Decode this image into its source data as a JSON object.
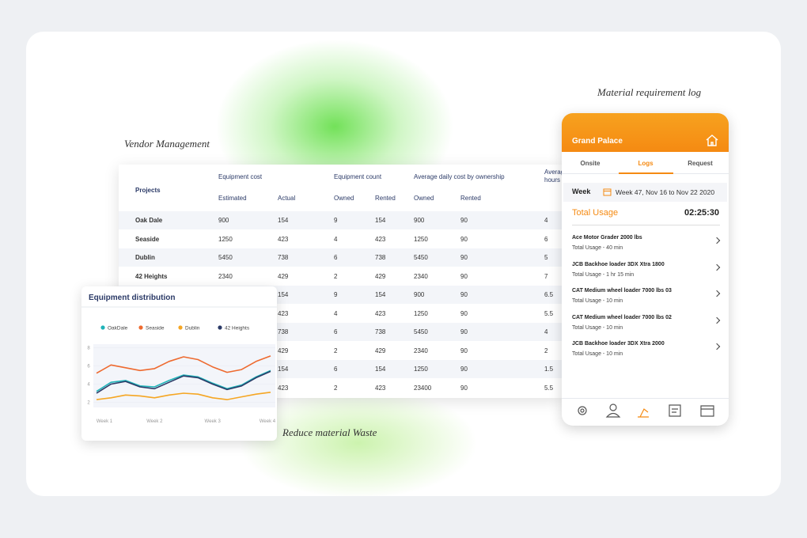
{
  "labels": {
    "vendor": "Vendor Management",
    "material_log": "Material requirement log",
    "reduce": "Reduce material Waste"
  },
  "table": {
    "groups": [
      "Projects",
      "Equipment cost",
      "Equipment count",
      "Average daily cost by ownership",
      "Average hours"
    ],
    "subheaders": [
      "Estimated",
      "Actual",
      "Owned",
      "Rented",
      "Owned",
      "Rented"
    ],
    "rows": [
      [
        "Oak Dale",
        900,
        154,
        9,
        154,
        900,
        90,
        4
      ],
      [
        "Seaside",
        1250,
        423,
        4,
        423,
        1250,
        90,
        6
      ],
      [
        "Dublin",
        5450,
        738,
        6,
        738,
        5450,
        90,
        5
      ],
      [
        "42 Heights",
        2340,
        429,
        2,
        429,
        2340,
        90,
        7
      ],
      [
        null,
        null,
        154,
        9,
        154,
        900,
        90,
        6.5
      ],
      [
        null,
        null,
        423,
        4,
        423,
        1250,
        90,
        5.5
      ],
      [
        null,
        null,
        738,
        6,
        738,
        5450,
        90,
        4
      ],
      [
        null,
        null,
        429,
        2,
        429,
        2340,
        90,
        2
      ],
      [
        null,
        null,
        154,
        6,
        154,
        1250,
        90,
        1.5
      ],
      [
        null,
        null,
        423,
        2,
        423,
        23400,
        90,
        5.5
      ]
    ]
  },
  "chart_data": {
    "type": "line",
    "title": "Equipment distribution",
    "x": [
      1,
      1.25,
      1.5,
      1.75,
      2,
      2.25,
      2.5,
      2.75,
      3,
      3.25,
      3.5,
      3.75,
      4
    ],
    "xlim": [
      1,
      4
    ],
    "xticks": [
      {
        "value": 1,
        "label": "Week 1"
      },
      {
        "value": 2,
        "label": "Week 2"
      },
      {
        "value": 3,
        "label": "Week 3"
      },
      {
        "value": 4,
        "label": "Week 4"
      }
    ],
    "ylim": [
      1,
      9
    ],
    "yticks": [
      8,
      6,
      4,
      2
    ],
    "series": [
      {
        "name": "OakDale",
        "color": "#1fb3b8",
        "values": [
          3.2,
          4.2,
          4.4,
          3.8,
          3.7,
          4.4,
          5.0,
          4.8,
          4.1,
          3.5,
          3.9,
          4.8,
          5.5
        ]
      },
      {
        "name": "Seaside",
        "color": "#ee6a2f",
        "values": [
          5.2,
          6.1,
          5.8,
          5.5,
          5.7,
          6.5,
          7.0,
          6.7,
          5.9,
          5.3,
          5.6,
          6.5,
          7.1
        ]
      },
      {
        "name": "Dublin",
        "color": "#f5a623",
        "values": [
          2.3,
          2.5,
          2.8,
          2.7,
          2.5,
          2.8,
          3.0,
          2.9,
          2.5,
          2.3,
          2.6,
          2.9,
          3.1
        ]
      },
      {
        "name": "42 Heights",
        "color": "#2b3a67",
        "values": [
          3.0,
          4.0,
          4.3,
          3.7,
          3.5,
          4.2,
          4.9,
          4.7,
          4.0,
          3.4,
          3.8,
          4.7,
          5.4
        ]
      }
    ]
  },
  "phone": {
    "title": "Grand Palace",
    "tabs": [
      "Onsite",
      "Logs",
      "Request"
    ],
    "week_label": "Week",
    "week": "Week 47, Nov 16 to Nov 22 2020",
    "total_label": "Total Usage",
    "total": "02:25:30",
    "items": [
      {
        "name": "Ace Motor Grader 2000 lbs",
        "usage": "Total Usage - 40 min"
      },
      {
        "name": "JCB Backhoe loader 3DX Xtra 1800",
        "usage": "Total Usage - 1 hr 15 min"
      },
      {
        "name": "CAT Medium wheel loader 7000 lbs 03",
        "usage": "Total Usage - 10 min"
      },
      {
        "name": "CAT Medium wheel loader 7000 lbs 02",
        "usage": "Total Usage - 10 min"
      },
      {
        "name": "JCB Backhoe loader 3DX Xtra 2000",
        "usage": "Total Usage - 10 min"
      }
    ]
  }
}
